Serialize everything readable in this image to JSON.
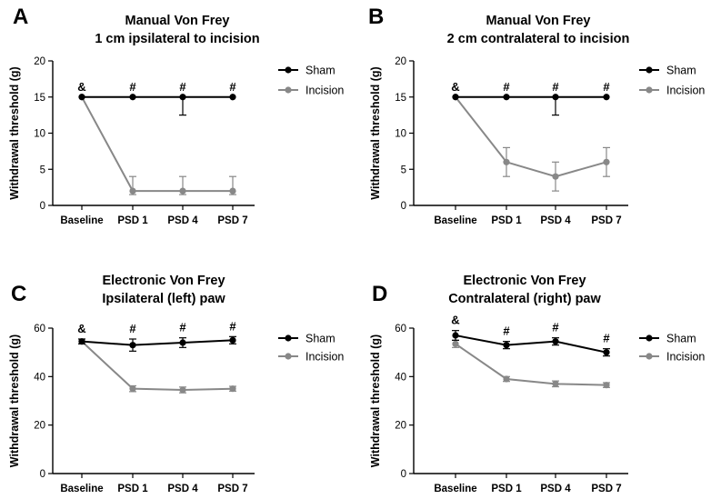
{
  "chart_data": [
    {
      "panel": "A",
      "type": "line",
      "title": [
        "Manual Von Frey",
        "1 cm ipsilateral to incision"
      ],
      "xlabel": "",
      "ylabel": "Withdrawal threshold (g)",
      "categories": [
        "Baseline",
        "PSD 1",
        "PSD 4",
        "PSD 7"
      ],
      "ylim": [
        0,
        20
      ],
      "yticks": [
        0,
        5,
        10,
        15,
        20
      ],
      "series": [
        {
          "name": "Sham",
          "color": "#000000",
          "values": [
            15,
            15,
            15,
            15
          ],
          "err_up": [
            0,
            0,
            0,
            0
          ],
          "err_down": [
            0,
            0,
            2.5,
            0
          ]
        },
        {
          "name": "Incision",
          "color": "#888888",
          "values": [
            15,
            2,
            2,
            2
          ],
          "err_up": [
            0,
            2,
            2,
            2
          ],
          "err_down": [
            0,
            0.5,
            0.5,
            0.5
          ]
        }
      ],
      "annotations": [
        "&",
        "#",
        "#",
        "#"
      ],
      "legend_position": "right"
    },
    {
      "panel": "B",
      "type": "line",
      "title": [
        "Manual Von Frey",
        "2 cm contralateral to incision"
      ],
      "xlabel": "",
      "ylabel": "Withdrawal threshold (g)",
      "categories": [
        "Baseline",
        "PSD 1",
        "PSD 4",
        "PSD 7"
      ],
      "ylim": [
        0,
        20
      ],
      "yticks": [
        0,
        5,
        10,
        15,
        20
      ],
      "series": [
        {
          "name": "Sham",
          "color": "#000000",
          "values": [
            15,
            15,
            15,
            15
          ],
          "err_up": [
            0,
            0,
            0,
            0
          ],
          "err_down": [
            0,
            0,
            2.5,
            0
          ]
        },
        {
          "name": "Incision",
          "color": "#888888",
          "values": [
            15,
            6,
            4,
            6
          ],
          "err_up": [
            0,
            2,
            2,
            2
          ],
          "err_down": [
            0,
            2,
            2,
            2
          ]
        }
      ],
      "annotations": [
        "&",
        "#",
        "#",
        "#"
      ],
      "legend_position": "right"
    },
    {
      "panel": "C",
      "type": "line",
      "title": [
        "Electronic Von Frey",
        "Ipsilateral (left) paw"
      ],
      "xlabel": "",
      "ylabel": "Withdrawal threshold (g)",
      "categories": [
        "Baseline",
        "PSD 1",
        "PSD 4",
        "PSD 7"
      ],
      "ylim": [
        0,
        60
      ],
      "yticks": [
        0,
        20,
        40,
        60
      ],
      "series": [
        {
          "name": "Sham",
          "color": "#000000",
          "values": [
            54.5,
            53,
            54,
            55
          ],
          "err_up": [
            1,
            2.5,
            2,
            1.5
          ],
          "err_down": [
            1,
            2.5,
            2,
            1.5
          ]
        },
        {
          "name": "Incision",
          "color": "#888888",
          "values": [
            54.5,
            35,
            34.5,
            35
          ],
          "err_up": [
            1,
            1.2,
            1.2,
            1
          ],
          "err_down": [
            1,
            1.2,
            1.2,
            1
          ]
        }
      ],
      "annotations": [
        "&",
        "#",
        "#",
        "#"
      ],
      "legend_position": "right"
    },
    {
      "panel": "D",
      "type": "line",
      "title": [
        "Electronic Von Frey",
        "Contralateral (right) paw"
      ],
      "xlabel": "",
      "ylabel": "Withdrawal threshold (g)",
      "categories": [
        "Baseline",
        "PSD 1",
        "PSD 4",
        "PSD 7"
      ],
      "ylim": [
        0,
        60
      ],
      "yticks": [
        0,
        20,
        40,
        60
      ],
      "series": [
        {
          "name": "Sham",
          "color": "#000000",
          "values": [
            57,
            53,
            54.5,
            50
          ],
          "err_up": [
            2,
            1.5,
            1.5,
            1.5
          ],
          "err_down": [
            2,
            1.5,
            1.5,
            1.5
          ]
        },
        {
          "name": "Incision",
          "color": "#888888",
          "values": [
            53.5,
            39,
            37,
            36.5
          ],
          "err_up": [
            1.5,
            1,
            1.2,
            1
          ],
          "err_down": [
            1.5,
            1,
            1.2,
            1
          ]
        }
      ],
      "annotations": [
        "&",
        "#",
        "#",
        "#"
      ],
      "legend_position": "right"
    }
  ]
}
